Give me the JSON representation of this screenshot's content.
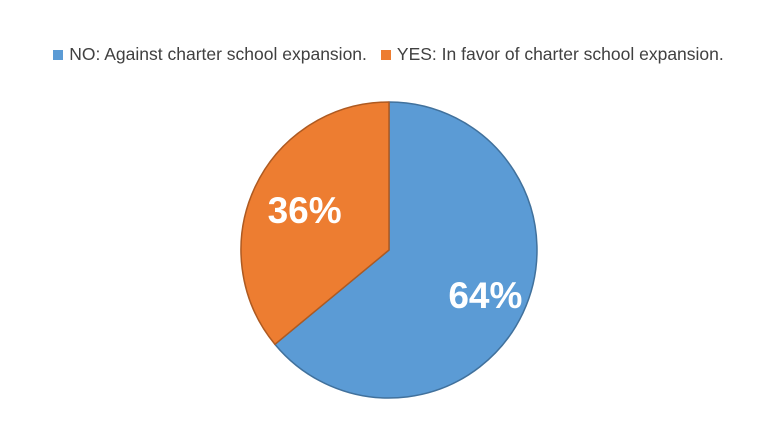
{
  "chart_data": {
    "type": "pie",
    "title": "",
    "legend_position": "top",
    "slices": [
      {
        "name": "NO: Against charter school expansion.",
        "value": 64,
        "label": "64%",
        "color": "#5b9bd5"
      },
      {
        "name": "YES: In favor of charter school expansion.",
        "value": 36,
        "label": "36%",
        "color": "#ed7d31"
      }
    ]
  }
}
